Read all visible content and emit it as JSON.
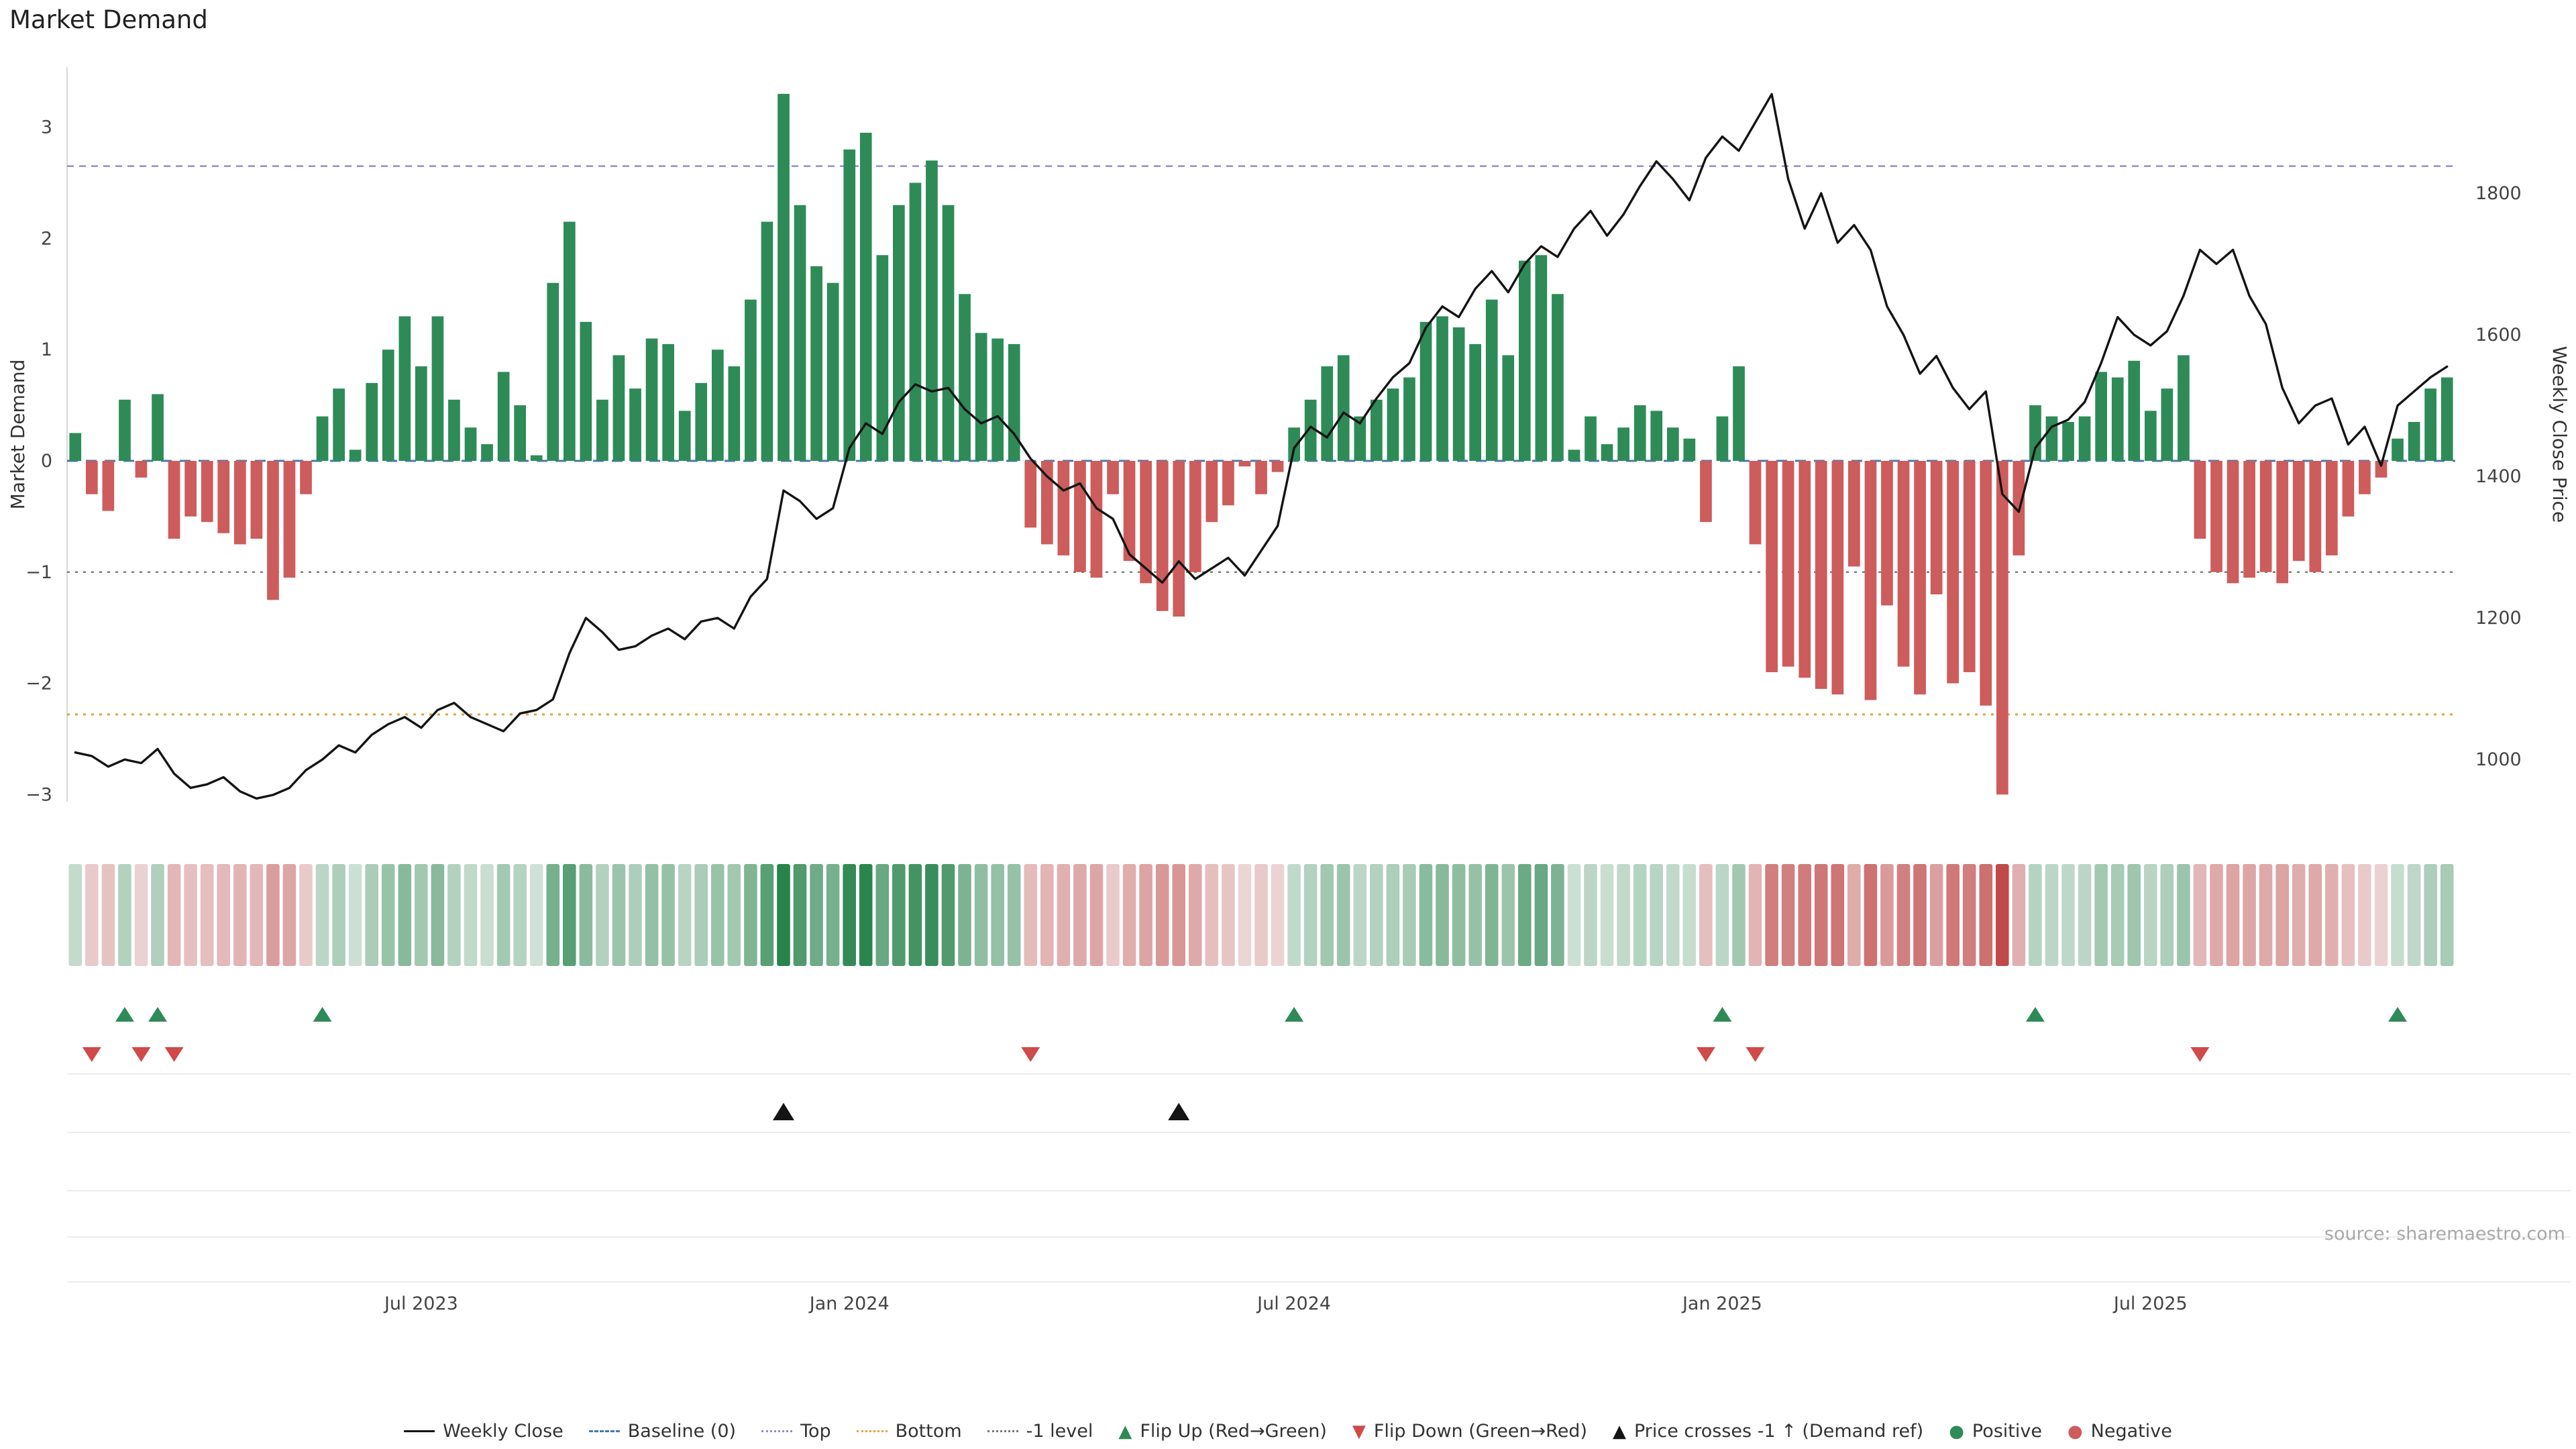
{
  "page": {
    "title": "Market Demand",
    "source": "source: sharemaestro.com"
  },
  "chart_data": {
    "type": "combo",
    "title": "Market Demand",
    "left_axis": {
      "label": "Market Demand",
      "ticks": [
        3,
        2,
        1,
        0,
        -1,
        -2,
        -3
      ],
      "range": [
        -3.1,
        3.5
      ]
    },
    "right_axis": {
      "label": "Weekly Close Price",
      "ticks": [
        1800,
        1600,
        1400,
        1200,
        1000
      ],
      "range": [
        940,
        1970
      ]
    },
    "x_axis": {
      "tick_labels": [
        "Jul 2023",
        "Jan 2024",
        "Jul 2024",
        "Jan 2025",
        "Jul 2025"
      ],
      "tick_indices": [
        21,
        47,
        74,
        100,
        126
      ]
    },
    "reference_lines": {
      "baseline": 0,
      "top": 2.65,
      "bottom": -2.28,
      "minus_one": -1
    },
    "series": [
      {
        "name": "Market Demand",
        "type": "bar",
        "axis": "left",
        "values": [
          0.25,
          -0.3,
          -0.45,
          0.55,
          -0.15,
          0.6,
          -0.7,
          -0.5,
          -0.55,
          -0.65,
          -0.75,
          -0.7,
          -1.25,
          -1.05,
          -0.3,
          0.4,
          0.65,
          0.1,
          0.7,
          1.0,
          1.3,
          0.85,
          1.3,
          0.55,
          0.3,
          0.15,
          0.8,
          0.5,
          0.05,
          1.6,
          2.15,
          1.25,
          0.55,
          0.95,
          0.65,
          1.1,
          1.05,
          0.45,
          0.7,
          1.0,
          0.85,
          1.45,
          2.15,
          3.3,
          2.3,
          1.75,
          1.6,
          2.8,
          2.95,
          1.85,
          2.3,
          2.5,
          2.7,
          2.3,
          1.5,
          1.15,
          1.1,
          1.05,
          -0.6,
          -0.75,
          -0.85,
          -1.0,
          -1.05,
          -0.3,
          -0.9,
          -1.1,
          -1.35,
          -1.4,
          -1.0,
          -0.55,
          -0.4,
          -0.05,
          -0.3,
          -0.1,
          0.3,
          0.55,
          0.85,
          0.95,
          0.4,
          0.55,
          0.65,
          0.75,
          1.25,
          1.3,
          1.2,
          1.05,
          1.45,
          0.95,
          1.8,
          1.85,
          1.5,
          0.1,
          0.4,
          0.15,
          0.3,
          0.5,
          0.45,
          0.3,
          0.2,
          -0.55,
          0.4,
          0.85,
          -0.75,
          -1.9,
          -1.85,
          -1.95,
          -2.05,
          -2.1,
          -0.95,
          -2.15,
          -1.3,
          -1.85,
          -2.1,
          -1.2,
          -2.0,
          -1.9,
          -2.2,
          -3.0,
          -0.85,
          0.5,
          0.4,
          0.35,
          0.4,
          0.8,
          0.75,
          0.9,
          0.45,
          0.65,
          0.95,
          -0.7,
          -1.0,
          -1.1,
          -1.05,
          -1.0,
          -1.1,
          -0.9,
          -1.0,
          -0.85,
          -0.5,
          -0.3,
          -0.15,
          0.2,
          0.35,
          0.65,
          0.75
        ]
      },
      {
        "name": "Weekly Close",
        "type": "line",
        "axis": "right",
        "values": [
          1010,
          1005,
          990,
          1000,
          995,
          1015,
          980,
          960,
          965,
          975,
          955,
          945,
          950,
          960,
          985,
          1000,
          1020,
          1010,
          1035,
          1050,
          1060,
          1045,
          1070,
          1080,
          1060,
          1050,
          1040,
          1065,
          1070,
          1085,
          1150,
          1200,
          1180,
          1155,
          1160,
          1175,
          1185,
          1170,
          1195,
          1200,
          1185,
          1230,
          1255,
          1380,
          1365,
          1340,
          1355,
          1440,
          1475,
          1460,
          1505,
          1530,
          1520,
          1525,
          1495,
          1475,
          1485,
          1460,
          1425,
          1400,
          1380,
          1390,
          1355,
          1340,
          1290,
          1270,
          1250,
          1280,
          1255,
          1270,
          1285,
          1260,
          1295,
          1330,
          1440,
          1470,
          1455,
          1490,
          1475,
          1510,
          1540,
          1560,
          1610,
          1640,
          1625,
          1665,
          1690,
          1660,
          1700,
          1725,
          1710,
          1750,
          1775,
          1740,
          1770,
          1810,
          1845,
          1820,
          1790,
          1850,
          1880,
          1860,
          1900,
          1940,
          1820,
          1750,
          1800,
          1730,
          1755,
          1720,
          1640,
          1600,
          1545,
          1570,
          1525,
          1495,
          1520,
          1375,
          1350,
          1440,
          1470,
          1480,
          1505,
          1560,
          1625,
          1600,
          1585,
          1605,
          1655,
          1720,
          1700,
          1720,
          1655,
          1615,
          1525,
          1475,
          1500,
          1510,
          1445,
          1470,
          1415,
          1500,
          1520,
          1540,
          1555
        ]
      }
    ],
    "markers": {
      "flip_up": [
        3,
        5,
        15,
        74,
        100,
        119,
        141
      ],
      "flip_down": [
        1,
        4,
        6,
        58,
        99,
        102,
        129
      ],
      "price_cross": [
        43,
        67
      ]
    },
    "colors": {
      "positive": "#2e8b57",
      "negative": "#cd5c5c",
      "line": "#141414",
      "baseline": "#4878b0",
      "top": "#8e8ec8",
      "bottom": "#e0a23c",
      "minus_one": "#777777",
      "flip_up": "#2e8b57",
      "flip_down": "#d04a4a",
      "cross": "#141414"
    }
  },
  "legend": {
    "items": [
      {
        "glyph": "line",
        "color": "#141414",
        "label": "Weekly Close"
      },
      {
        "glyph": "dash",
        "color": "#4878b0",
        "label": "Baseline (0)"
      },
      {
        "glyph": "dots",
        "color": "#8e8ec8",
        "label": "Top"
      },
      {
        "glyph": "dots",
        "color": "#e0a23c",
        "label": "Bottom"
      },
      {
        "glyph": "dots",
        "color": "#777777",
        "label": "-1 level"
      },
      {
        "glyph": "tri-up",
        "color": "#2e8b57",
        "label": "Flip Up (Red→Green)"
      },
      {
        "glyph": "tri-down",
        "color": "#d04a4a",
        "label": "Flip Down (Green→Red)"
      },
      {
        "glyph": "tri-up",
        "color": "#141414",
        "label": "Price crosses -1 ↑ (Demand ref)"
      },
      {
        "glyph": "dot",
        "color": "#2e8b57",
        "label": "Positive"
      },
      {
        "glyph": "dot",
        "color": "#cd5c5c",
        "label": "Negative"
      }
    ]
  }
}
